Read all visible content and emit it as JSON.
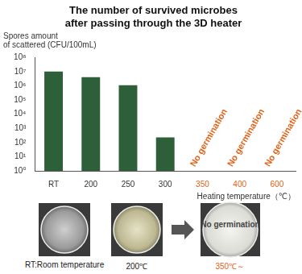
{
  "chart_data": {
    "type": "bar",
    "title": [
      "The number of survived microbes",
      "after passing through the 3D heater"
    ],
    "y_label": [
      "Spores amount",
      "of scattered (CFU/100mL)"
    ],
    "x_label": "Heating temperature（℃）",
    "categories": [
      "RT",
      "200",
      "250",
      "300",
      "350",
      "400",
      "600"
    ],
    "values": [
      10000000,
      4000000,
      1100000,
      230,
      null,
      null,
      null
    ],
    "color": "#2d5f38",
    "log": "y",
    "ylim": [
      1,
      100000000
    ],
    "yticks": [
      {
        "value": 1,
        "label": "10⁰"
      },
      {
        "value": 10,
        "label": "10¹"
      },
      {
        "value": 100,
        "label": "10²"
      },
      {
        "value": 1000,
        "label": "10³"
      },
      {
        "value": 10000,
        "label": "10⁴"
      },
      {
        "value": 100000,
        "label": "10⁵"
      },
      {
        "value": 1000000,
        "label": "10⁶"
      },
      {
        "value": 10000000,
        "label": "10⁷"
      },
      {
        "value": 100000000,
        "label": "10⁸"
      }
    ],
    "grid": false,
    "annotations": [
      {
        "text": "No germination",
        "category": "350",
        "color": "#e2631a"
      },
      {
        "text": "No germination",
        "category": "400",
        "color": "#e2631a"
      },
      {
        "text": "No germination",
        "category": "600",
        "color": "#e2631a"
      }
    ]
  },
  "photos": [
    {
      "label": "RT:Room temperature"
    },
    {
      "label": "200℃"
    },
    {
      "label": "350℃～",
      "text": "No germination",
      "color": "#e2631a"
    }
  ]
}
